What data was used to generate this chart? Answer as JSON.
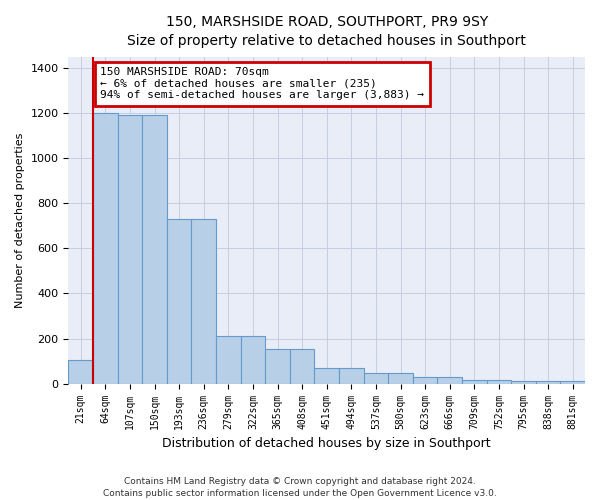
{
  "title": "150, MARSHSIDE ROAD, SOUTHPORT, PR9 9SY",
  "subtitle": "Size of property relative to detached houses in Southport",
  "xlabel": "Distribution of detached houses by size in Southport",
  "ylabel": "Number of detached properties",
  "categories": [
    "21sqm",
    "64sqm",
    "107sqm",
    "150sqm",
    "193sqm",
    "236sqm",
    "279sqm",
    "322sqm",
    "365sqm",
    "408sqm",
    "451sqm",
    "494sqm",
    "537sqm",
    "580sqm",
    "623sqm",
    "666sqm",
    "709sqm",
    "752sqm",
    "795sqm",
    "838sqm",
    "881sqm"
  ],
  "values": [
    105,
    1200,
    1190,
    1190,
    730,
    730,
    210,
    210,
    155,
    155,
    70,
    70,
    47,
    47,
    30,
    30,
    18,
    18,
    10,
    10,
    10
  ],
  "bar_color": "#b8cfe8",
  "bar_edge_color": "#6699cc",
  "red_line_x": 0.5,
  "annotation_text": "150 MARSHSIDE ROAD: 70sqm\n← 6% of detached houses are smaller (235)\n94% of semi-detached houses are larger (3,883) →",
  "annotation_box_facecolor": "#ffffff",
  "annotation_box_edgecolor": "#cc0000",
  "footer_line1": "Contains HM Land Registry data © Crown copyright and database right 2024.",
  "footer_line2": "Contains public sector information licensed under the Open Government Licence v3.0.",
  "ylim": [
    0,
    1450
  ],
  "yticks": [
    0,
    200,
    400,
    600,
    800,
    1000,
    1200,
    1400
  ],
  "plot_bg": "#e8edf8",
  "fig_bg": "#ffffff",
  "grid_color": "#c5cfe0",
  "title_fontsize": 10,
  "subtitle_fontsize": 9,
  "ylabel_fontsize": 8,
  "xlabel_fontsize": 9,
  "ytick_fontsize": 8,
  "xtick_fontsize": 7,
  "footer_fontsize": 6.5,
  "annotation_fontsize": 8
}
